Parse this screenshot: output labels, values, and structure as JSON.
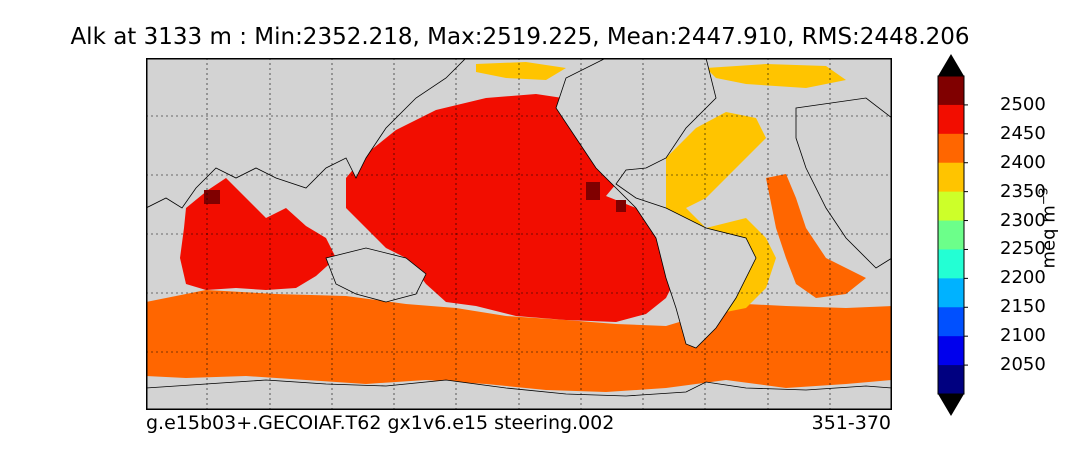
{
  "title": "Alk at 3133 m : Min:2352.218, Max:2519.225, Mean:2447.910, RMS:2448.206",
  "caption_left": "g.e15b03+.GECOIAF.T62 gx1v6.e15 steering.002",
  "caption_right": "351-370",
  "colorbar": {
    "unit_base": "meq m",
    "unit_exp": "−3",
    "ticks": [
      "2500",
      "2450",
      "2400",
      "2350",
      "2300",
      "2250",
      "2200",
      "2150",
      "2100",
      "2050"
    ],
    "colors": [
      "#800000",
      "#f20d00",
      "#ff6600",
      "#ffc400",
      "#cdff29",
      "#6cff8a",
      "#23ffd4",
      "#00b2ff",
      "#0050ff",
      "#0000ed",
      "#000080"
    ],
    "extend": "both"
  },
  "map": {
    "projection": "cylindrical, centered on Pacific",
    "land_color": "#d3d3d3",
    "missing_color": "#ffffff",
    "gridlines": true
  }
}
